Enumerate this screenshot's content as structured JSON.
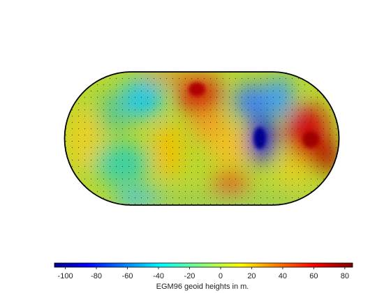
{
  "colorbar": {
    "title": "EGM96 geoid heights in m.",
    "ticks": [
      "-100",
      "-80",
      "-60",
      "-40",
      "-20",
      "0",
      "20",
      "40",
      "60",
      "80"
    ],
    "range": [
      -107,
      85
    ],
    "colormap": "jet",
    "colors": [
      "#00008f",
      "#0000ff",
      "#00ffff",
      "#ffff00",
      "#ff0000",
      "#800000"
    ]
  },
  "map": {
    "projection": "pseudocylindrical",
    "graticule": "dotted"
  }
}
